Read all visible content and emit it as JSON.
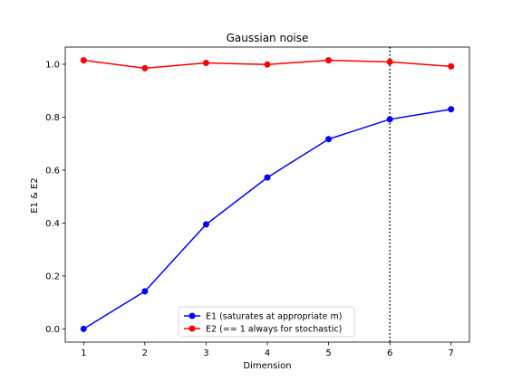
{
  "chart_data": {
    "type": "line",
    "title": "Gaussian noise",
    "xlabel": "Dimension",
    "ylabel": "E1 & E2",
    "x": [
      1,
      2,
      3,
      4,
      5,
      6,
      7
    ],
    "xlim": [
      0.7,
      7.3
    ],
    "ylim": [
      -0.05,
      1.065
    ],
    "xticks": [
      1,
      2,
      3,
      4,
      5,
      6,
      7
    ],
    "yticks": [
      0.0,
      0.2,
      0.4,
      0.6,
      0.8,
      1.0
    ],
    "ytick_labels": [
      "0.0",
      "0.2",
      "0.4",
      "0.6",
      "0.8",
      "1.0"
    ],
    "series": [
      {
        "name": "E1 (saturates at appropriate m)",
        "color": "#0000ff",
        "values": [
          0.0,
          0.142,
          0.395,
          0.572,
          0.717,
          0.792,
          0.83
        ]
      },
      {
        "name": "E2 (== 1 always for stochastic)",
        "color": "#ff0000",
        "values": [
          1.015,
          0.985,
          1.005,
          0.999,
          1.015,
          1.009,
          0.992
        ]
      }
    ],
    "vline": {
      "x": 6,
      "style": "dotted",
      "color": "#000000"
    },
    "legend_position": "lower-center",
    "grid": false
  }
}
